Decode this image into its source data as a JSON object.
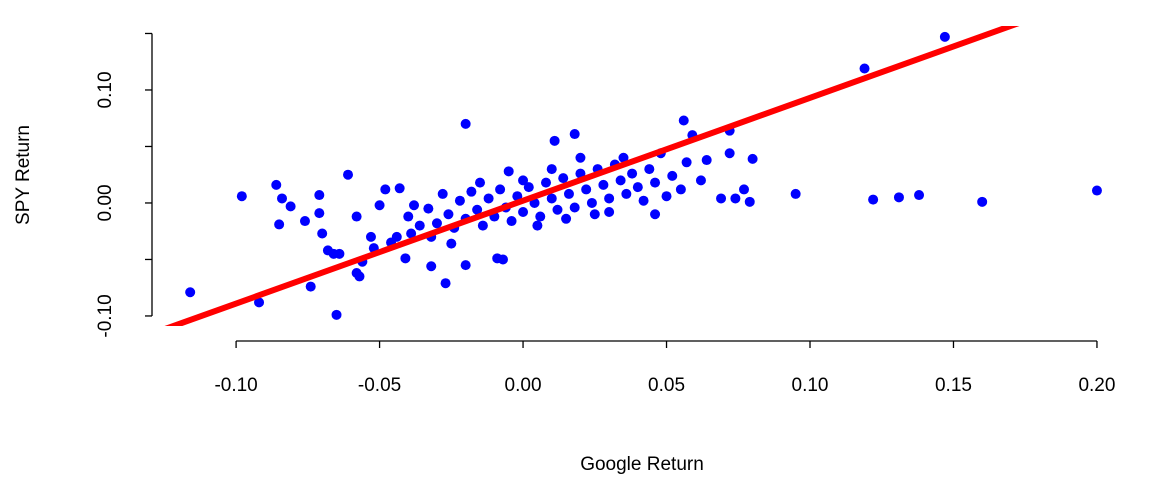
{
  "chart_data": {
    "type": "scatter",
    "xlabel": "Google Return",
    "ylabel": "SPY Return",
    "x": [
      -0.116,
      -0.098,
      -0.092,
      -0.086,
      -0.085,
      -0.084,
      -0.081,
      -0.076,
      -0.074,
      -0.071,
      -0.071,
      -0.07,
      -0.068,
      -0.066,
      -0.065,
      -0.064,
      -0.061,
      -0.058,
      -0.058,
      -0.057,
      -0.056,
      -0.053,
      -0.052,
      -0.02,
      -0.027,
      -0.02,
      -0.009,
      -0.007,
      0.011,
      0.018,
      0.056,
      0.059,
      0.072,
      0.072,
      0.08,
      0.077,
      0.079,
      0.095,
      0.119,
      0.147,
      0.122,
      0.131,
      0.138,
      0.16,
      0.2,
      0.069,
      0.074,
      0.062,
      0.064,
      0.057,
      0.046,
      -0.032,
      -0.041,
      -0.046,
      -0.039,
      -0.05,
      -0.048,
      -0.043,
      -0.04,
      -0.036,
      -0.033,
      -0.03,
      -0.028,
      -0.026,
      -0.024,
      -0.022,
      -0.02,
      -0.018,
      -0.016,
      -0.014,
      -0.012,
      -0.01,
      -0.008,
      -0.006,
      -0.004,
      -0.002,
      0.0,
      0.002,
      0.004,
      0.006,
      0.008,
      0.01,
      0.012,
      0.014,
      0.016,
      0.018,
      0.02,
      0.022,
      0.024,
      0.026,
      0.028,
      0.03,
      0.032,
      0.034,
      0.036,
      0.038,
      0.04,
      0.042,
      0.044,
      0.046,
      0.048,
      0.05,
      0.052,
      0.055,
      -0.044,
      -0.038,
      -0.032,
      0.0,
      0.005,
      0.015,
      -0.015,
      0.025,
      0.035,
      0.01,
      -0.005,
      0.03,
      -0.025,
      0.02
    ],
    "y": [
      -0.079,
      0.006,
      -0.088,
      0.016,
      -0.019,
      0.004,
      -0.003,
      -0.016,
      -0.074,
      0.007,
      -0.009,
      -0.027,
      -0.042,
      -0.045,
      -0.099,
      -0.045,
      0.025,
      -0.012,
      -0.062,
      -0.065,
      -0.052,
      -0.03,
      -0.04,
      0.07,
      -0.071,
      -0.055,
      -0.049,
      -0.05,
      0.055,
      0.061,
      0.073,
      0.06,
      0.064,
      0.044,
      0.039,
      0.012,
      0.001,
      0.008,
      0.119,
      0.147,
      0.003,
      0.005,
      0.007,
      0.001,
      0.011,
      0.004,
      0.004,
      0.02,
      0.038,
      0.036,
      -0.01,
      -0.056,
      -0.049,
      -0.035,
      -0.027,
      -0.002,
      0.012,
      0.013,
      -0.012,
      -0.02,
      -0.005,
      -0.018,
      0.008,
      -0.01,
      -0.022,
      0.002,
      -0.014,
      0.01,
      -0.006,
      -0.02,
      0.004,
      -0.012,
      0.012,
      -0.004,
      -0.016,
      0.006,
      -0.008,
      0.014,
      0.0,
      -0.012,
      0.018,
      0.004,
      -0.006,
      0.022,
      0.008,
      -0.004,
      0.026,
      0.012,
      0.0,
      0.03,
      0.016,
      0.004,
      0.034,
      0.02,
      0.008,
      0.026,
      0.014,
      0.002,
      0.03,
      0.018,
      0.044,
      0.006,
      0.024,
      0.012,
      -0.03,
      -0.002,
      -0.03,
      0.02,
      -0.02,
      -0.014,
      0.018,
      -0.01,
      0.04,
      0.03,
      0.028,
      -0.008,
      -0.036,
      0.04
    ],
    "color": "#0000ff",
    "trend_line": {
      "intercept": 0.002,
      "slope": 0.91,
      "color": "#ff0000"
    },
    "xlim": [
      -0.1307,
      0.2127
    ],
    "ylim": [
      -0.108,
      0.156
    ],
    "xticks": [
      {
        "value": -0.1,
        "label": "-0.10"
      },
      {
        "value": -0.05,
        "label": "-0.05"
      },
      {
        "value": 0,
        "label": "0.00"
      },
      {
        "value": 0.05,
        "label": "0.05"
      },
      {
        "value": 0.1,
        "label": "0.10"
      },
      {
        "value": 0.15,
        "label": "0.15"
      },
      {
        "value": 0.2,
        "label": "0.20"
      }
    ],
    "yticks": [
      {
        "value": -0.1,
        "label": "-0.10"
      },
      {
        "value": 0,
        "label": "0.00"
      },
      {
        "value": 0.1,
        "label": "0.10"
      }
    ],
    "yminorticks": [
      -0.05,
      0.05,
      0.15
    ],
    "grid": false
  }
}
